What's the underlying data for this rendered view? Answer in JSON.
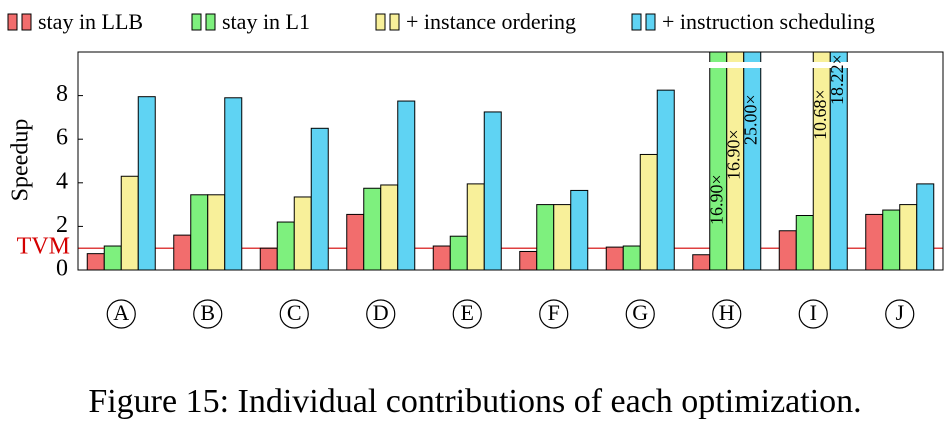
{
  "chart_data": {
    "type": "bar",
    "caption": "Figure 15: Individual contributions of each optimization.",
    "y_label": "Speedup",
    "categories": [
      "A",
      "B",
      "C",
      "D",
      "E",
      "F",
      "G",
      "H",
      "I",
      "J"
    ],
    "series": [
      {
        "name": "stay in LLB",
        "color": "#f26d6d",
        "values": [
          0.75,
          1.6,
          1.0,
          2.55,
          1.1,
          0.85,
          1.05,
          0.7,
          1.8,
          2.55
        ],
        "value_labels": [
          null,
          null,
          null,
          null,
          null,
          null,
          null,
          null,
          null,
          null
        ]
      },
      {
        "name": "stay in L1",
        "color": "#7ef07e",
        "values": [
          1.1,
          3.45,
          2.2,
          3.75,
          1.55,
          3.0,
          1.1,
          16.9,
          2.5,
          2.75
        ],
        "value_labels": [
          null,
          null,
          null,
          null,
          null,
          null,
          null,
          "16.90×",
          null,
          null
        ]
      },
      {
        "name": "+ instance ordering",
        "color": "#f8f09a",
        "values": [
          4.3,
          3.45,
          3.35,
          3.9,
          3.95,
          3.0,
          5.3,
          16.9,
          10.68,
          3.0
        ],
        "value_labels": [
          null,
          null,
          null,
          null,
          null,
          null,
          null,
          "16.90×",
          "10.68×",
          null
        ]
      },
      {
        "name": "+ instruction scheduling",
        "color": "#5fd3f3",
        "values": [
          7.95,
          7.9,
          6.5,
          7.75,
          7.25,
          3.65,
          8.25,
          25.0,
          18.22,
          3.95
        ],
        "value_labels": [
          null,
          null,
          null,
          null,
          null,
          null,
          null,
          "25.00×",
          "18.22×",
          null
        ]
      }
    ],
    "ylim": [
      0,
      10
    ],
    "yticks": [
      0,
      2,
      4,
      6,
      8
    ],
    "reference_line": {
      "value": 1,
      "label": "TVM",
      "color": "#d40000"
    }
  }
}
